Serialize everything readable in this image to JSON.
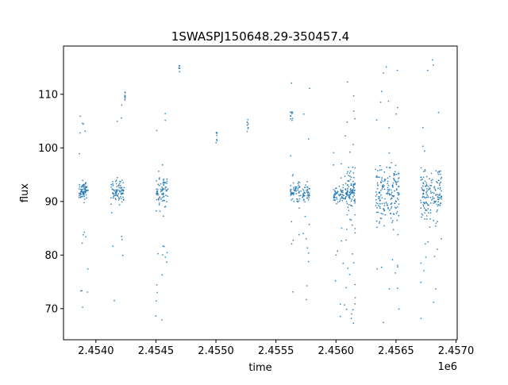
{
  "chart_data": {
    "type": "scatter",
    "title": "1SWASPJ150648.29-350457.4",
    "xlabel": "time",
    "ylabel": "flux",
    "x_offset_label": "1e6",
    "xlim": [
      2453730,
      2457010
    ],
    "ylim": [
      64.2,
      119
    ],
    "x_ticks": [
      2454000,
      2454500,
      2455000,
      2455500,
      2456000,
      2456500,
      2457000
    ],
    "x_tick_labels": [
      "2.4540",
      "2.4545",
      "2.4550",
      "2.4555",
      "2.4560",
      "2.4565",
      "2.4570"
    ],
    "y_ticks": [
      70,
      80,
      90,
      100,
      110
    ],
    "y_tick_labels": [
      "70",
      "80",
      "90",
      "100",
      "110"
    ],
    "grid": false,
    "legend": "none",
    "marker_color": "#1f77b4",
    "series": [
      {
        "segments": [
          {
            "x_start": 2453860,
            "x_end": 2453935,
            "median": 92.0,
            "scatter": 0.9,
            "low_tail": 67.0,
            "high_tail": 106,
            "points": 90
          },
          {
            "x_start": 2454125,
            "x_end": 2454235,
            "median": 91.8,
            "scatter": 1.0,
            "low_tail": 67.0,
            "high_tail": 116,
            "points": 90
          },
          {
            "x_start": 2454240,
            "x_end": 2454245,
            "median": 110.0,
            "scatter": 0.5,
            "low_tail": 109,
            "high_tail": 111,
            "points": 8
          },
          {
            "x_start": 2454500,
            "x_end": 2454600,
            "median": 92.0,
            "scatter": 1.3,
            "low_tail": 67.0,
            "high_tail": 111,
            "points": 95
          },
          {
            "x_start": 2454690,
            "x_end": 2454700,
            "median": 115.0,
            "scatter": 0.4,
            "low_tail": 114,
            "high_tail": 115.5,
            "points": 6
          },
          {
            "x_start": 2455000,
            "x_end": 2455010,
            "median": 102.0,
            "scatter": 0.6,
            "low_tail": 100.5,
            "high_tail": 103,
            "points": 8
          },
          {
            "x_start": 2455260,
            "x_end": 2455270,
            "median": 104.0,
            "scatter": 0.5,
            "low_tail": 103,
            "high_tail": 108,
            "points": 8
          },
          {
            "x_start": 2455620,
            "x_end": 2455640,
            "median": 106.0,
            "scatter": 0.5,
            "low_tail": 105,
            "high_tail": 107,
            "points": 10
          },
          {
            "x_start": 2455620,
            "x_end": 2455780,
            "median": 91.6,
            "scatter": 1.0,
            "low_tail": 67.0,
            "high_tail": 116,
            "points": 120
          },
          {
            "x_start": 2455980,
            "x_end": 2456090,
            "median": 91.4,
            "scatter": 0.8,
            "low_tail": 68.0,
            "high_tail": 104,
            "points": 90
          },
          {
            "x_start": 2456090,
            "x_end": 2456160,
            "median": 91.5,
            "scatter": 2.0,
            "low_tail": 67.0,
            "high_tail": 113,
            "points": 110
          },
          {
            "x_start": 2456330,
            "x_end": 2456530,
            "median": 91.5,
            "scatter": 2.8,
            "low_tail": 67.0,
            "high_tail": 117,
            "points": 200
          },
          {
            "x_start": 2456700,
            "x_end": 2456880,
            "median": 91.5,
            "scatter": 2.5,
            "low_tail": 67.0,
            "high_tail": 117,
            "points": 170
          }
        ]
      }
    ]
  }
}
